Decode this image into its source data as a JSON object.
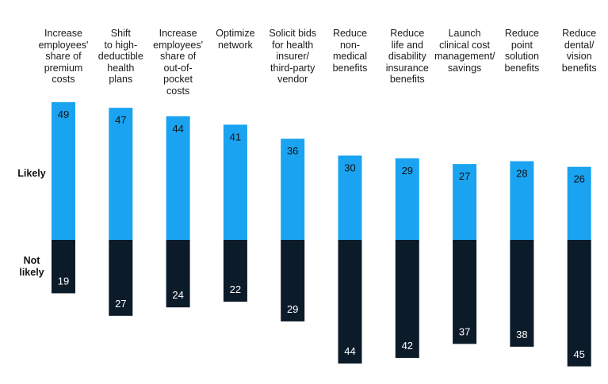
{
  "chart_data": {
    "type": "bar",
    "stacked": "diverging",
    "categories": [
      "Increase employees' share of premium costs",
      "Shift to high-deductible health plans",
      "Increase employees' share of out-of-pocket costs",
      "Optimize network",
      "Solicit bids for health insurer/ third-party vendor",
      "Reduce non-medical benefits",
      "Reduce life and disability insurance benefits",
      "Launch clinical cost management/ savings",
      "Reduce point solution benefits",
      "Reduce dental/ vision benefits"
    ],
    "category_lines": [
      [
        "Increase",
        "employees'",
        "share of",
        "premium",
        "costs"
      ],
      [
        "Shift",
        "to high-",
        "deductible",
        "health",
        "plans"
      ],
      [
        "Increase",
        "employees'",
        "share of",
        "out-of-",
        "pocket",
        "costs"
      ],
      [
        "Optimize",
        "network"
      ],
      [
        "Solicit bids",
        "for health",
        "insurer/",
        "third-party",
        "vendor"
      ],
      [
        "Reduce",
        "non-",
        "medical",
        "benefits"
      ],
      [
        "Reduce",
        "life and",
        "disability",
        "insurance",
        "benefits"
      ],
      [
        "Launch",
        "clinical cost",
        "management/",
        "savings"
      ],
      [
        "Reduce",
        "point",
        "solution",
        "benefits"
      ],
      [
        "Reduce",
        "dental/",
        "vision",
        "benefits"
      ]
    ],
    "series": [
      {
        "name": "Likely",
        "values": [
          49,
          47,
          44,
          41,
          36,
          30,
          29,
          27,
          28,
          26
        ],
        "color": "#1aa3f0"
      },
      {
        "name": "Not likely",
        "values": [
          19,
          27,
          24,
          22,
          29,
          44,
          42,
          37,
          38,
          45
        ],
        "color": "#0c1b2a"
      }
    ],
    "row_labels": {
      "likely": "Likely",
      "not_likely": [
        "Not",
        "likely"
      ]
    },
    "legend": "none",
    "grid": false
  }
}
